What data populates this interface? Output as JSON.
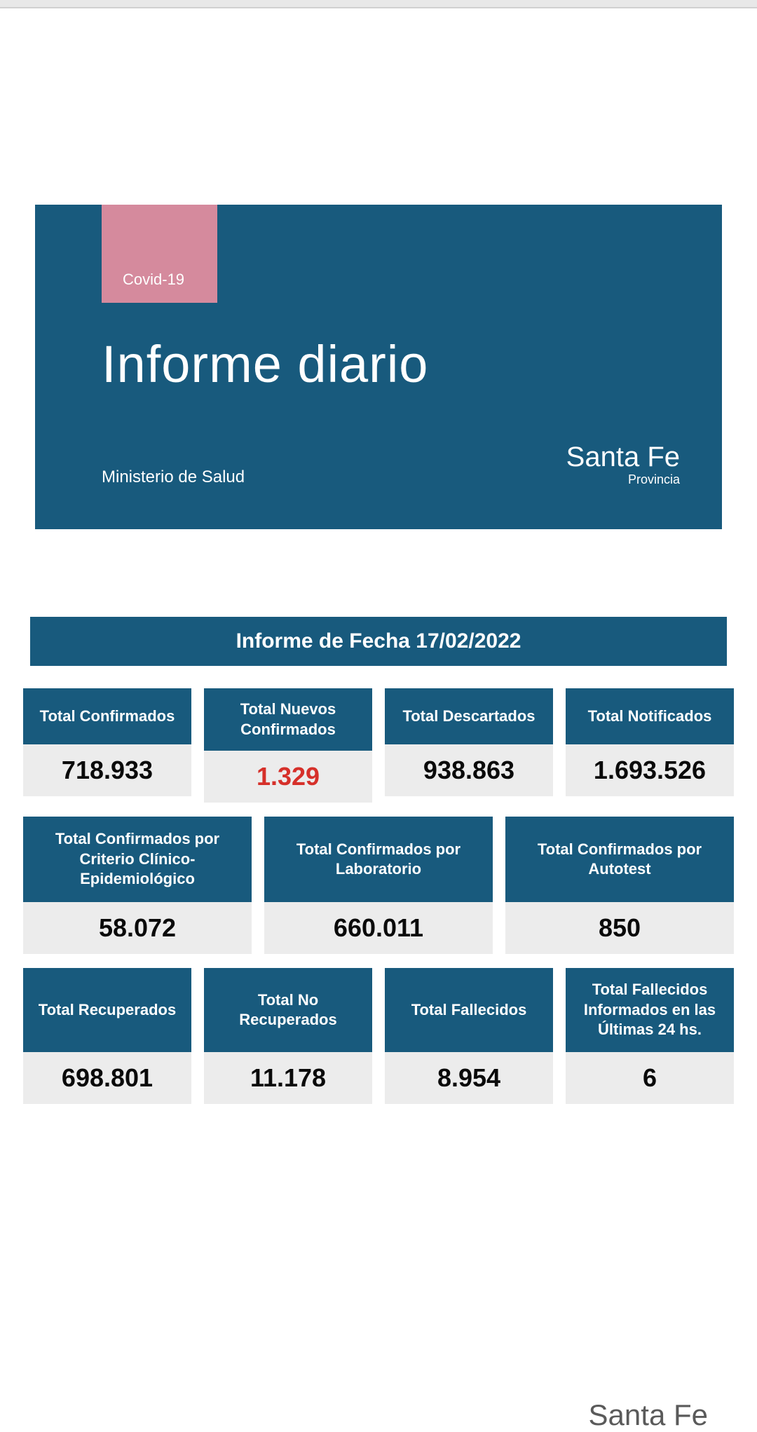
{
  "colors": {
    "primary": "#185a7d",
    "badge": "#d58a9d",
    "value_bg": "#ececec",
    "highlight": "#d6302a",
    "page_bg": "#ffffff",
    "body_bg": "#f5f5f5"
  },
  "header": {
    "badge": "Covid-19",
    "title": "Informe diario",
    "ministry": "Ministerio de Salud",
    "logo_main": "Santa Fe",
    "logo_sub": "Provincia"
  },
  "date_bar": "Informe de Fecha 17/02/2022",
  "row1": [
    {
      "label": "Total Confirmados",
      "value": "718.933"
    },
    {
      "label": "Total Nuevos Confirmados",
      "value": "1.329",
      "highlight": true
    },
    {
      "label": "Total Descartados",
      "value": "938.863"
    },
    {
      "label": "Total Notificados",
      "value": "1.693.526"
    }
  ],
  "row2": [
    {
      "label": "Total Confirmados por Criterio Clínico-Epidemiológico",
      "value": "58.072"
    },
    {
      "label": "Total Confirmados por Laboratorio",
      "value": "660.011"
    },
    {
      "label": "Total Confirmados por Autotest",
      "value": "850"
    }
  ],
  "row3": [
    {
      "label": "Total Recuperados",
      "value": "698.801"
    },
    {
      "label": "Total No Recuperados",
      "value": "11.178"
    },
    {
      "label": "Total Fallecidos",
      "value": "8.954"
    },
    {
      "label": "Total Fallecidos Informados en las Últimas 24 hs.",
      "value": "6"
    }
  ],
  "footer": {
    "ministry": "",
    "logo": "Santa Fe"
  }
}
